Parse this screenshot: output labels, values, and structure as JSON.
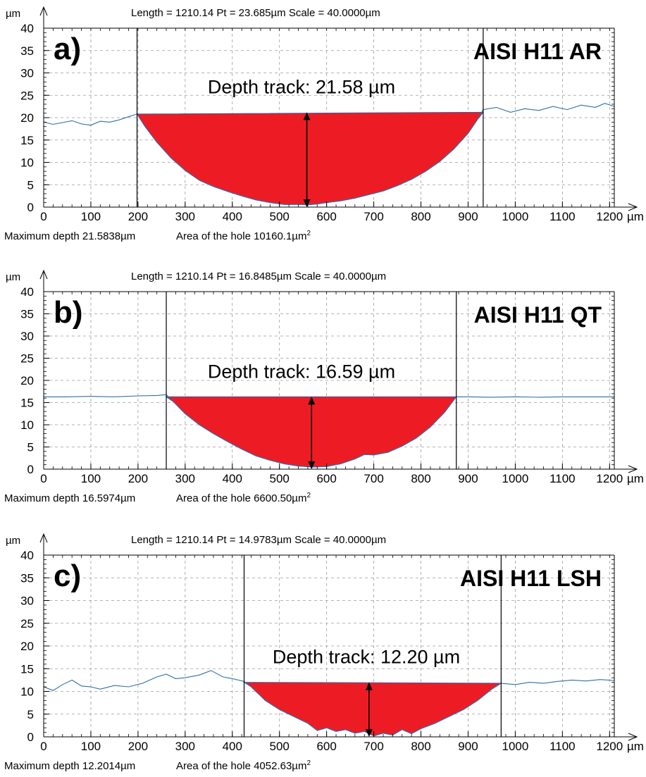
{
  "chart_data": [
    {
      "type": "area",
      "panel_label": "a)",
      "title_label": "AISI H11 AR",
      "header": "Length = 1210.14  Pt = 23.685µm  Scale = 40.0000µm",
      "x_unit": "µm",
      "y_unit": "µm",
      "xlim": [
        0,
        1210
      ],
      "ylim": [
        0,
        40
      ],
      "xticks": [
        0,
        100,
        200,
        300,
        400,
        500,
        600,
        700,
        800,
        900,
        1000,
        1100,
        1200
      ],
      "yticks": [
        0,
        5,
        10,
        15,
        20,
        25,
        30,
        35,
        40
      ],
      "grid": true,
      "annotation": "Depth track: 21.58 µm",
      "track_start": 198,
      "track_end": 932,
      "track_top": 21.2,
      "arrow_x": 558,
      "caption_depth": "Maximum depth 21.5838µm",
      "caption_area": "Area of the hole 10160.1µm",
      "caption_sup": "2",
      "profile": {
        "x": [
          0,
          20,
          40,
          60,
          80,
          100,
          120,
          140,
          160,
          180,
          198,
          215,
          240,
          270,
          300,
          330,
          360,
          390,
          420,
          450,
          480,
          510,
          540,
          560,
          580,
          600,
          630,
          660,
          690,
          720,
          750,
          780,
          810,
          840,
          870,
          900,
          920,
          932,
          960,
          990,
          1020,
          1050,
          1080,
          1110,
          1140,
          1170,
          1190,
          1210
        ],
        "y": [
          19.0,
          18.5,
          18.9,
          19.3,
          18.6,
          18.3,
          19.2,
          19.0,
          19.5,
          20.2,
          20.8,
          18.0,
          14.5,
          11.0,
          8.2,
          6.0,
          4.6,
          3.5,
          2.5,
          1.6,
          1.0,
          0.6,
          0.6,
          0.5,
          0.7,
          1.0,
          1.4,
          2.0,
          2.8,
          3.6,
          4.8,
          6.2,
          8.0,
          10.2,
          13.0,
          16.5,
          19.6,
          21.8,
          22.3,
          21.2,
          22.0,
          21.6,
          22.5,
          21.8,
          22.8,
          22.3,
          23.2,
          22.5
        ]
      }
    },
    {
      "type": "area",
      "panel_label": "b)",
      "title_label": "AISI H11 QT",
      "header": "Length = 1210.14  Pt = 16.8485µm  Scale = 40.0000µm",
      "x_unit": "µm",
      "y_unit": "µm",
      "xlim": [
        0,
        1210
      ],
      "ylim": [
        0,
        40
      ],
      "xticks": [
        0,
        100,
        200,
        300,
        400,
        500,
        600,
        700,
        800,
        900,
        1000,
        1100,
        1200
      ],
      "yticks": [
        0,
        5,
        10,
        15,
        20,
        25,
        30,
        35,
        40
      ],
      "grid": true,
      "annotation": "Depth track: 16.59 µm",
      "track_start": 260,
      "track_end": 875,
      "track_top": 16.3,
      "arrow_x": 568,
      "caption_depth": "Maximum depth 16.5974µm",
      "caption_area": "Area of the hole 6600.50µm",
      "caption_sup": "2",
      "profile": {
        "x": [
          0,
          50,
          100,
          150,
          200,
          240,
          260,
          275,
          300,
          330,
          360,
          390,
          420,
          450,
          480,
          510,
          540,
          570,
          600,
          630,
          660,
          680,
          700,
          730,
          760,
          790,
          820,
          850,
          875,
          900,
          950,
          1000,
          1050,
          1100,
          1150,
          1210
        ],
        "y": [
          16.3,
          16.3,
          16.4,
          16.3,
          16.5,
          16.6,
          16.8,
          15.2,
          12.5,
          10.0,
          8.0,
          6.2,
          4.5,
          3.0,
          2.0,
          1.2,
          0.7,
          0.5,
          0.6,
          1.2,
          2.3,
          3.3,
          3.2,
          3.8,
          5.2,
          7.0,
          9.5,
          12.8,
          16.3,
          16.3,
          16.2,
          16.3,
          16.2,
          16.3,
          16.3,
          16.3
        ]
      }
    },
    {
      "type": "area",
      "panel_label": "c)",
      "title_label": "AISI H11 LSH",
      "header": "Length = 1210.14  Pt = 14.9783µm  Scale = 40.0000µm",
      "x_unit": "µm",
      "y_unit": "µm",
      "xlim": [
        0,
        1210
      ],
      "ylim": [
        0,
        40
      ],
      "xticks": [
        0,
        100,
        200,
        300,
        400,
        500,
        600,
        700,
        800,
        900,
        1000,
        1100,
        1200
      ],
      "yticks": [
        0,
        5,
        10,
        15,
        20,
        25,
        30,
        35,
        40
      ],
      "grid": true,
      "annotation": "Depth track: 12.20 µm",
      "track_start": 425,
      "track_end": 970,
      "track_top": 12.0,
      "arrow_x": 690,
      "caption_depth": "Maximum depth 12.2014µm",
      "caption_area": "Area of the hole 4052.63µm",
      "caption_sup": "2",
      "profile": {
        "x": [
          0,
          20,
          40,
          60,
          80,
          100,
          120,
          150,
          180,
          210,
          240,
          260,
          280,
          300,
          330,
          355,
          380,
          400,
          425,
          440,
          470,
          500,
          530,
          560,
          580,
          600,
          620,
          640,
          660,
          680,
          700,
          720,
          740,
          760,
          780,
          800,
          830,
          860,
          890,
          920,
          950,
          970,
          1000,
          1030,
          1060,
          1090,
          1120,
          1150,
          1180,
          1210
        ],
        "y": [
          11.0,
          10.2,
          11.5,
          12.5,
          11.2,
          11.0,
          10.5,
          11.3,
          11.0,
          11.8,
          13.2,
          13.8,
          12.8,
          13.0,
          13.6,
          14.6,
          13.2,
          12.8,
          12.2,
          11.0,
          8.0,
          6.0,
          4.5,
          3.0,
          1.4,
          2.0,
          1.2,
          1.6,
          0.8,
          1.2,
          0.2,
          0.8,
          0.4,
          1.6,
          0.7,
          1.8,
          3.0,
          4.5,
          6.0,
          8.0,
          10.5,
          11.8,
          11.5,
          12.0,
          11.8,
          12.2,
          12.5,
          12.3,
          12.6,
          12.4
        ]
      }
    }
  ]
}
